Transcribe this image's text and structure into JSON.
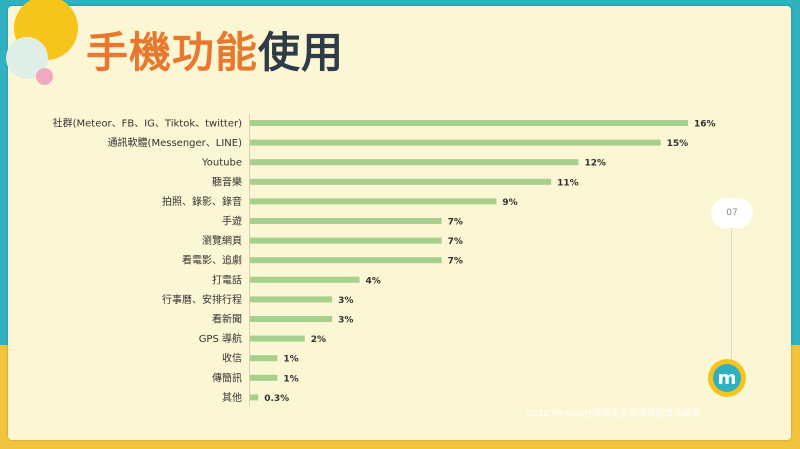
{
  "slide": {
    "title_part1": "手機功能",
    "title_part2": "使用",
    "page_number": "07",
    "footer": "2022 Meteor台灣學生生活消費習慣大調查",
    "logo_letter": "m"
  },
  "colors": {
    "background": "#2fb1bf",
    "slide_background": "#fbf6d3",
    "title_orange": "#e8782f",
    "title_dark": "#2f3b47",
    "bar": "#a8d08d",
    "accent_yellow": "#f6c51c"
  },
  "chart_data": {
    "type": "bar",
    "orientation": "horizontal",
    "categories": [
      "社群(Meteor、FB、IG、Tiktok、twitter)",
      "通訊軟體(Messenger、LINE)",
      "Youtube",
      "聽音樂",
      "拍照、錄影、錄音",
      "手遊",
      "瀏覽網頁",
      "看電影、追劇",
      "打電話",
      "行事曆、安排行程",
      "看新聞",
      "GPS 導航",
      "收信",
      "傳簡訊",
      "其他"
    ],
    "values": [
      16,
      15,
      12,
      11,
      9,
      7,
      7,
      7,
      4,
      3,
      3,
      2,
      1,
      1,
      0.3
    ],
    "value_labels": [
      "16%",
      "15%",
      "12%",
      "11%",
      "9%",
      "7%",
      "7%",
      "7%",
      "4%",
      "3%",
      "3%",
      "2%",
      "1%",
      "1%",
      "0.3%"
    ],
    "xlim": [
      0,
      16
    ],
    "grid": false,
    "legend": "none"
  }
}
